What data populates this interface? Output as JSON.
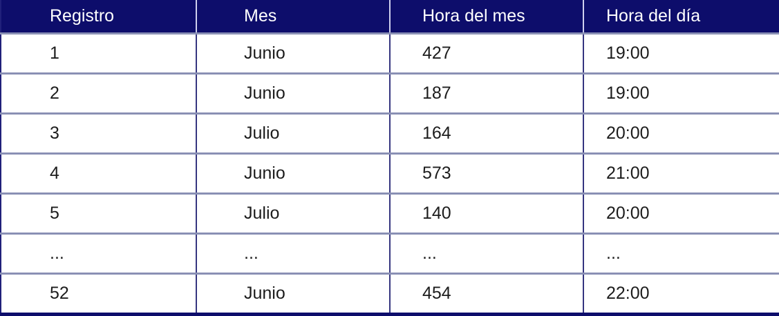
{
  "table": {
    "columns": [
      {
        "label": "Registro"
      },
      {
        "label": "Mes"
      },
      {
        "label": "Hora del mes"
      },
      {
        "label": "Hora del día"
      }
    ],
    "rows": [
      [
        "1",
        "Junio",
        "427",
        "19:00"
      ],
      [
        "2",
        "Junio",
        "187",
        "19:00"
      ],
      [
        "3",
        "Julio",
        "164",
        "20:00"
      ],
      [
        "4",
        "Junio",
        "573",
        "21:00"
      ],
      [
        "5",
        "Julio",
        "140",
        "20:00"
      ],
      [
        "...",
        "...",
        "...",
        "..."
      ],
      [
        "52",
        "Junio",
        "454",
        "22:00"
      ]
    ]
  },
  "colors": {
    "header_background": "#0d0d6b",
    "header_text": "#ffffff",
    "header_cell_divider": "#cfd0ee",
    "row_divider": "#8a90b4",
    "column_divider": "#35357f",
    "outer_border": "#20207a",
    "bottom_bar": "#0d0d6b",
    "body_text": "#1c1c1c",
    "body_background": "#ffffff"
  }
}
